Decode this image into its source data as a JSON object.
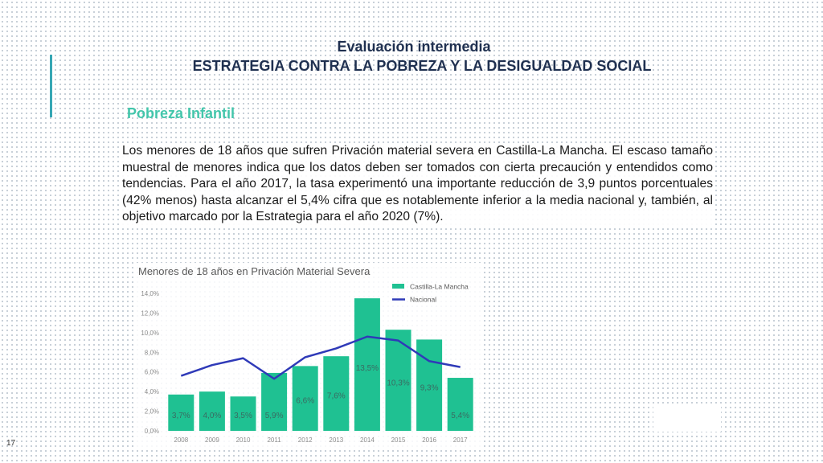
{
  "header": {
    "title_line1": "Evaluación intermedia",
    "title_line2": "ESTRATEGIA CONTRA LA POBREZA Y LA DESIGUALDAD SOCIAL"
  },
  "section_title": "Pobreza Infantil",
  "paragraph": "Los menores de 18 años que sufren Privación material severa en Castilla-La Mancha. El escaso tamaño muestral de menores indica que los datos deben ser tomados con cierta precaución y entendidos como tendencias. Para el año 2017, la tasa experimentó una importante reducción de 3,9 puntos porcentuales (42% menos) hasta alcanzar el 5,4% cifra que es notablemente inferior a la media nacional y, también, al objetivo marcado por la Estrategia para el año 2020 (7%).",
  "page_number": "17",
  "colors": {
    "bar": "#1fc192",
    "line": "#2f3ab8",
    "accent": "#36a7b4",
    "section": "#43c6ab"
  },
  "chart_data": {
    "type": "bar",
    "title": "Menores de 18 años en Privación Material  Severa",
    "xlabel": "",
    "ylabel": "",
    "categories": [
      "2008",
      "2009",
      "2010",
      "2011",
      "2012",
      "2013",
      "2014",
      "2015",
      "2016",
      "2017"
    ],
    "ylim": [
      0,
      14
    ],
    "yticks": [
      "0,0%",
      "2,0%",
      "4,0%",
      "6,0%",
      "8,0%",
      "10,0%",
      "12,0%",
      "14,0%"
    ],
    "legend_position": "top-right",
    "series": [
      {
        "name": "Castilla-La Mancha",
        "kind": "bar",
        "values": [
          3.7,
          4.0,
          3.5,
          5.9,
          6.6,
          7.6,
          13.5,
          10.3,
          9.3,
          5.4
        ],
        "labels": [
          "3,7%",
          "4,0%",
          "3,5%",
          "5,9%",
          "6,6%",
          "7,6%",
          "13,5%",
          "10,3%",
          "9,3%",
          "5,4%"
        ]
      },
      {
        "name": "Nacional",
        "kind": "line",
        "values": [
          5.6,
          6.7,
          7.4,
          5.3,
          7.5,
          8.4,
          9.6,
          9.2,
          7.1,
          6.5
        ]
      }
    ]
  }
}
